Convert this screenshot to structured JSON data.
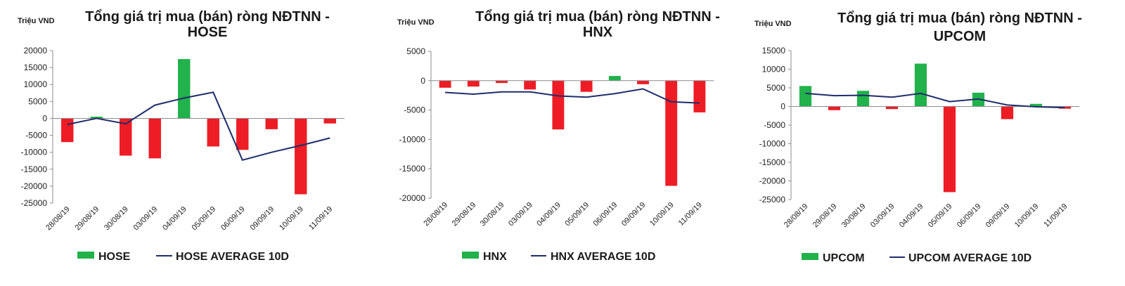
{
  "chart_data": [
    {
      "type": "bar",
      "title_line1": "Tổng giá trị mua (bán) ròng NĐTNN -",
      "title_line2": "HOSE",
      "ylabel": "Triệu VND",
      "ylim": [
        -25000,
        20000
      ],
      "yticks": [
        20000,
        15000,
        10000,
        5000,
        0,
        -5000,
        -10000,
        -15000,
        -20000,
        -25000
      ],
      "categories": [
        "28/08/19",
        "29/08/19",
        "30/08/19",
        "03/09/19",
        "04/09/19",
        "05/09/19",
        "06/09/19",
        "09/09/19",
        "10/09/19",
        "11/09/19"
      ],
      "series": [
        {
          "name": "HOSE",
          "kind": "bar",
          "values": [
            -7000,
            500,
            -11000,
            -11800,
            17500,
            -8300,
            -9300,
            -3200,
            -22400,
            -1500
          ]
        },
        {
          "name": "HOSE AVERAGE 10D",
          "kind": "line",
          "values": [
            -1800,
            0,
            -1600,
            3900,
            6000,
            7700,
            -12300,
            -10000,
            -8000,
            -5800
          ]
        }
      ],
      "colors": {
        "positive": "#21b24b",
        "negative": "#ee1c25",
        "line": "#1f2d6b"
      },
      "grid": false,
      "legend_position": "bottom"
    },
    {
      "type": "bar",
      "title_line1": "Tổng giá trị mua (bán) ròng NĐTNN -",
      "title_line2": "HNX",
      "ylabel": "Triệu VND",
      "ylim": [
        -20000,
        5000
      ],
      "yticks": [
        5000,
        0,
        -5000,
        -10000,
        -15000,
        -20000
      ],
      "categories": [
        "28/08/19",
        "29/08/19",
        "30/08/19",
        "03/09/19",
        "04/09/19",
        "05/09/19",
        "06/09/19",
        "09/09/19",
        "10/09/19",
        "11/09/19"
      ],
      "series": [
        {
          "name": "HNX",
          "kind": "bar",
          "values": [
            -1200,
            -1000,
            -400,
            -1500,
            -8300,
            -1900,
            800,
            -600,
            -17900,
            -5400
          ]
        },
        {
          "name": "HNX AVERAGE 10D",
          "kind": "line",
          "values": [
            -2000,
            -2300,
            -1900,
            -1900,
            -2600,
            -2800,
            -2200,
            -1400,
            -3600,
            -3800
          ]
        }
      ],
      "colors": {
        "positive": "#21b24b",
        "negative": "#ee1c25",
        "line": "#1f2d6b"
      },
      "grid": false,
      "legend_position": "bottom"
    },
    {
      "type": "bar",
      "title_line1": "Tổng giá trị mua (bán) ròng NĐTNN -",
      "title_line2": "UPCOM",
      "ylabel": "Triệu VND",
      "ylim": [
        -25000,
        15000
      ],
      "yticks": [
        15000,
        10000,
        5000,
        0,
        -5000,
        -10000,
        -15000,
        -20000,
        -25000
      ],
      "categories": [
        "28/08/19",
        "29/08/19",
        "30/08/19",
        "03/09/19",
        "04/09/19",
        "05/09/19",
        "06/09/19",
        "09/09/19",
        "10/09/19",
        "11/09/19"
      ],
      "series": [
        {
          "name": "UPCOM",
          "kind": "bar",
          "values": [
            5500,
            -1000,
            4200,
            -700,
            11500,
            -23000,
            3700,
            -3400,
            700,
            -600
          ]
        },
        {
          "name": "UPCOM AVERAGE 10D",
          "kind": "line",
          "values": [
            3500,
            2900,
            3000,
            2500,
            3500,
            1300,
            2000,
            400,
            -100,
            -300
          ]
        }
      ],
      "colors": {
        "positive": "#21b24b",
        "negative": "#ee1c25",
        "line": "#1f2d6b"
      },
      "grid": false,
      "legend_position": "bottom"
    }
  ]
}
